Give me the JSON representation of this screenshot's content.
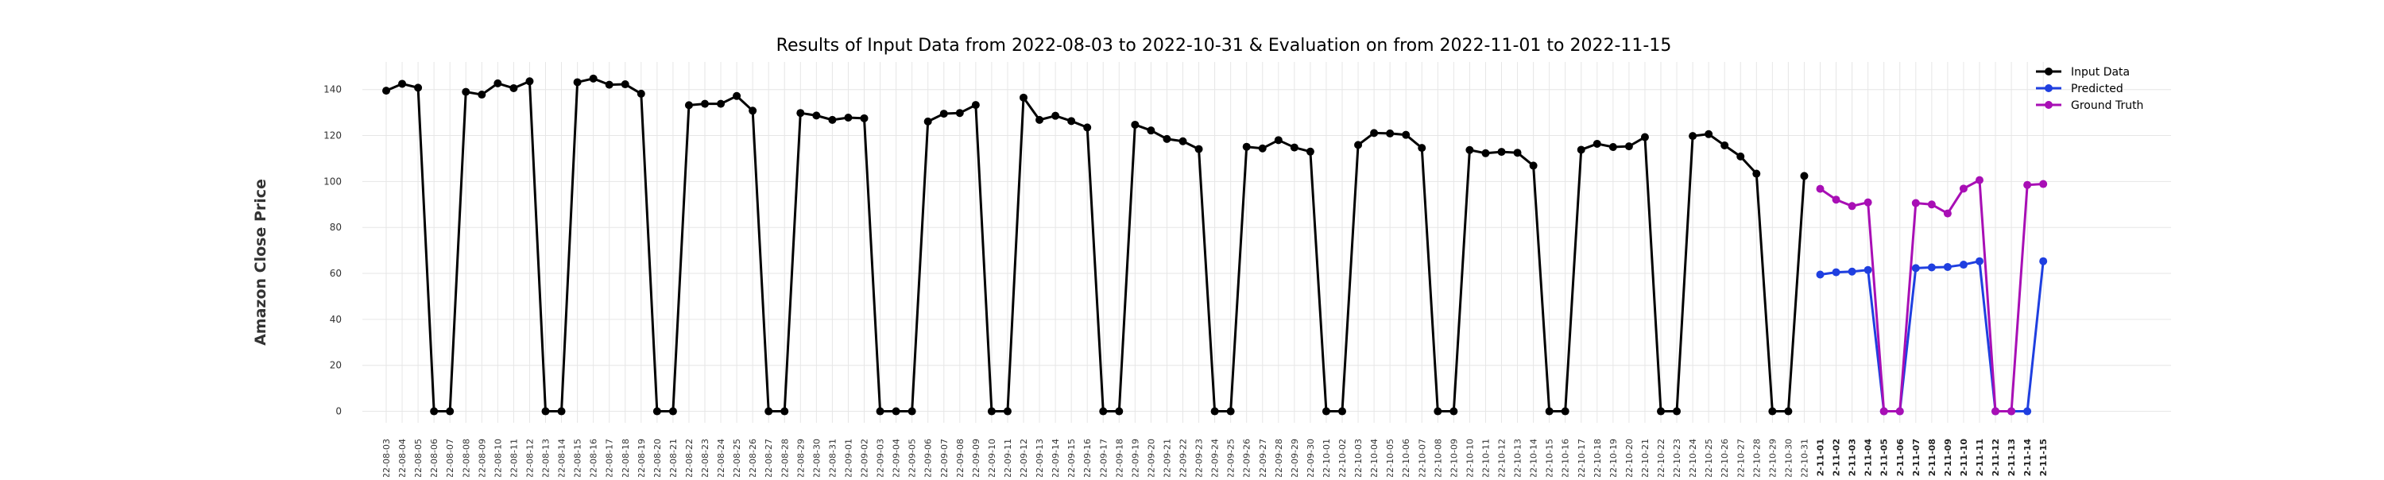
{
  "chart_data": {
    "type": "line",
    "title": "Results of Input Data from 2022-08-03 to 2022-10-31 & Evaluation on from 2022-11-01 to 2022-11-15",
    "xlabel": "",
    "ylabel": "Amazon Close Price",
    "ylim": [
      -5,
      152
    ],
    "yticks": [
      0,
      20,
      40,
      60,
      80,
      100,
      120,
      140
    ],
    "grid": true,
    "legend_position": "top-right",
    "series": [
      {
        "name": "Input Data",
        "color": "#000000",
        "x": [
          "2022-08-03",
          "2022-08-04",
          "2022-08-05",
          "2022-08-06",
          "2022-08-07",
          "2022-08-08",
          "2022-08-09",
          "2022-08-10",
          "2022-08-11",
          "2022-08-12",
          "2022-08-13",
          "2022-08-14",
          "2022-08-15",
          "2022-08-16",
          "2022-08-17",
          "2022-08-18",
          "2022-08-19",
          "2022-08-20",
          "2022-08-21",
          "2022-08-22",
          "2022-08-23",
          "2022-08-24",
          "2022-08-25",
          "2022-08-26",
          "2022-08-27",
          "2022-08-28",
          "2022-08-29",
          "2022-08-30",
          "2022-08-31",
          "2022-09-01",
          "2022-09-02",
          "2022-09-03",
          "2022-09-04",
          "2022-09-05",
          "2022-09-06",
          "2022-09-07",
          "2022-09-08",
          "2022-09-09",
          "2022-09-10",
          "2022-09-11",
          "2022-09-12",
          "2022-09-13",
          "2022-09-14",
          "2022-09-15",
          "2022-09-16",
          "2022-09-17",
          "2022-09-18",
          "2022-09-19",
          "2022-09-20",
          "2022-09-21",
          "2022-09-22",
          "2022-09-23",
          "2022-09-24",
          "2022-09-25",
          "2022-09-26",
          "2022-09-27",
          "2022-09-28",
          "2022-09-29",
          "2022-09-30",
          "2022-10-01",
          "2022-10-02",
          "2022-10-03",
          "2022-10-04",
          "2022-10-05",
          "2022-10-06",
          "2022-10-07",
          "2022-10-08",
          "2022-10-09",
          "2022-10-10",
          "2022-10-11",
          "2022-10-12",
          "2022-10-13",
          "2022-10-14",
          "2022-10-15",
          "2022-10-16",
          "2022-10-17",
          "2022-10-18",
          "2022-10-19",
          "2022-10-20",
          "2022-10-21",
          "2022-10-22",
          "2022-10-23",
          "2022-10-24",
          "2022-10-25",
          "2022-10-26",
          "2022-10-27",
          "2022-10-28",
          "2022-10-29",
          "2022-10-30",
          "2022-10-31"
        ],
        "values": [
          139.5,
          142.5,
          140.8,
          0,
          0,
          139.0,
          137.8,
          142.7,
          140.6,
          143.6,
          0,
          0,
          143.2,
          144.8,
          142.1,
          142.3,
          138.2,
          0,
          0,
          133.2,
          133.8,
          133.8,
          137.2,
          130.8,
          0,
          0,
          129.8,
          128.7,
          126.8,
          127.8,
          127.5,
          0,
          0,
          0,
          126.1,
          129.5,
          129.8,
          133.3,
          0,
          0,
          136.5,
          126.8,
          128.6,
          126.3,
          123.5,
          0,
          0,
          124.7,
          122.2,
          118.5,
          117.5,
          114.1,
          0,
          0,
          115.1,
          114.4,
          118.0,
          114.8,
          113.0,
          0,
          0,
          115.9,
          121.1,
          120.9,
          120.3,
          114.6,
          0,
          0,
          113.7,
          112.3,
          112.9,
          112.5,
          106.9,
          0,
          0,
          113.8,
          116.4,
          115.0,
          115.3,
          119.3,
          0,
          0,
          119.8,
          120.6,
          115.7,
          110.9,
          103.4,
          0,
          0,
          102.4
        ]
      },
      {
        "name": "Predicted",
        "color": "#1f3fe0",
        "x": [
          "2022-11-01",
          "2022-11-02",
          "2022-11-03",
          "2022-11-04",
          "2022-11-05",
          "2022-11-06",
          "2022-11-07",
          "2022-11-08",
          "2022-11-09",
          "2022-11-10",
          "2022-11-11",
          "2022-11-12",
          "2022-11-13",
          "2022-11-14",
          "2022-11-15"
        ],
        "values": [
          59.5,
          60.5,
          60.8,
          61.5,
          0,
          0,
          62.3,
          62.6,
          62.8,
          63.8,
          65.3,
          0,
          0,
          0,
          65.3
        ]
      },
      {
        "name": "Ground Truth",
        "color": "#a80fb5",
        "x": [
          "2022-11-01",
          "2022-11-02",
          "2022-11-03",
          "2022-11-04",
          "2022-11-05",
          "2022-11-06",
          "2022-11-07",
          "2022-11-08",
          "2022-11-09",
          "2022-11-10",
          "2022-11-11",
          "2022-11-12",
          "2022-11-13",
          "2022-11-14",
          "2022-11-15"
        ],
        "values": [
          96.8,
          92.1,
          89.3,
          90.9,
          0,
          0,
          90.6,
          90.0,
          86.1,
          96.9,
          100.6,
          0,
          0,
          98.5,
          98.9
        ]
      }
    ]
  }
}
